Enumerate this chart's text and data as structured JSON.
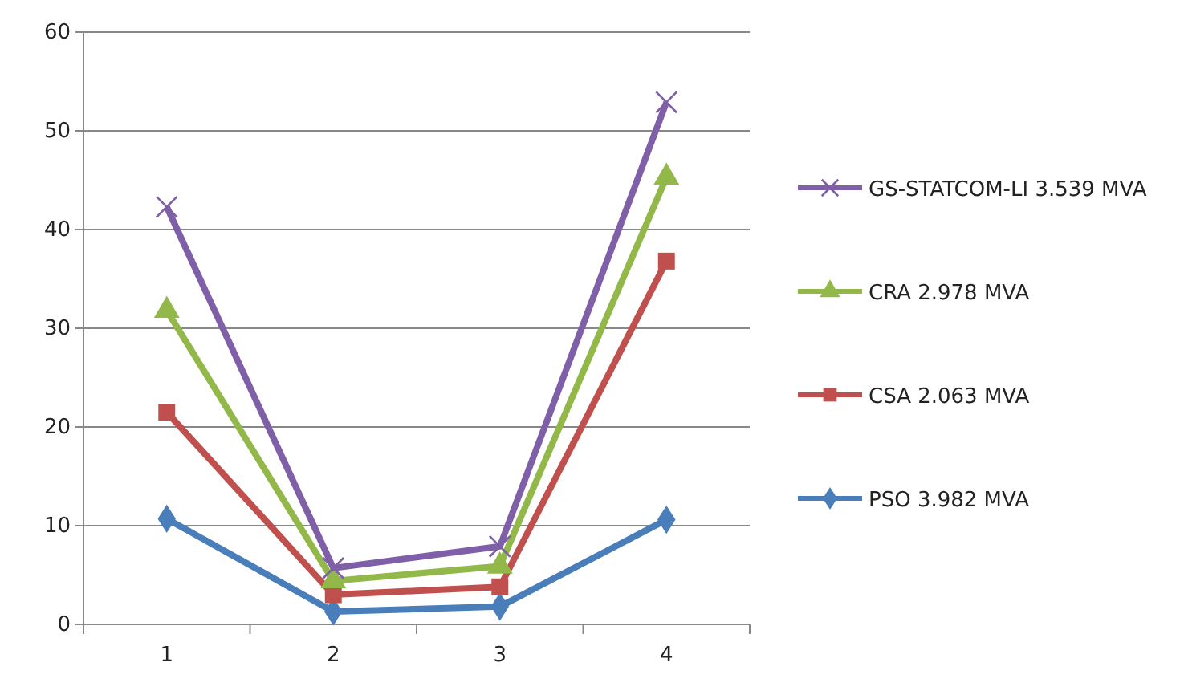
{
  "chart_data": {
    "type": "line",
    "categories": [
      "1",
      "2",
      "3",
      "4"
    ],
    "series": [
      {
        "name": "GS-STATCOM-LI 3.539 MVA",
        "color": "#7f5fa8",
        "marker": "cross",
        "values": [
          42.3,
          5.7,
          7.9,
          52.9
        ]
      },
      {
        "name": "CRA 2.978 MVA",
        "color": "#93b84a",
        "marker": "triangle",
        "values": [
          31.8,
          4.4,
          5.9,
          45.3
        ]
      },
      {
        "name": "CSA 2.063 MVA",
        "color": "#c0504d",
        "marker": "square",
        "values": [
          21.5,
          3.0,
          3.8,
          36.8
        ]
      },
      {
        "name": "PSO 3.982 MVA",
        "color": "#4a7ebb",
        "marker": "diamond",
        "values": [
          10.7,
          1.3,
          1.8,
          10.6
        ]
      }
    ],
    "ylim": [
      0,
      60
    ],
    "yticks": [
      0,
      10,
      20,
      30,
      40,
      50,
      60
    ],
    "grid": "y",
    "legend": "right",
    "line_style": "solid"
  }
}
